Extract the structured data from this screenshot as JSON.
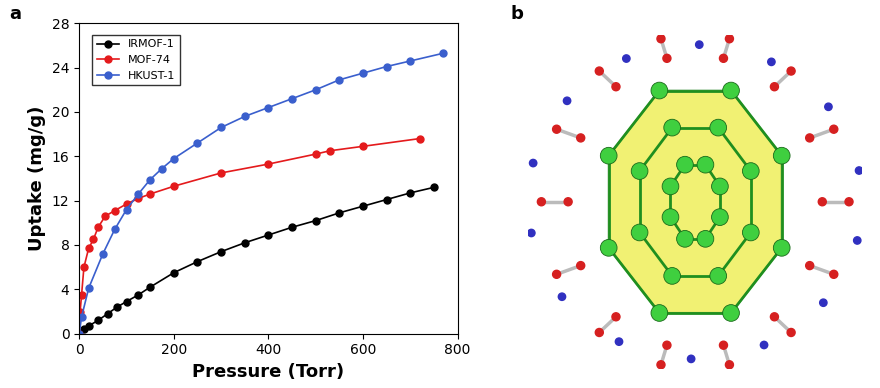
{
  "chart_data": {
    "type": "line",
    "x_label": "Pressure (Torr)",
    "y_label": "Uptake (mg/g)",
    "xlim": [
      0,
      800
    ],
    "xticks": [
      0,
      200,
      400,
      600,
      800
    ],
    "ylim": [
      0,
      28
    ],
    "yticks": [
      0,
      4,
      8,
      12,
      16,
      20,
      24,
      28
    ],
    "legend": "upper left",
    "marker": "o",
    "line_style": "solid",
    "series": [
      {
        "name": "IRMOF-1",
        "color": "#000000",
        "x": [
          0,
          10,
          20,
          40,
          60,
          80,
          100,
          125,
          150,
          200,
          250,
          300,
          350,
          400,
          450,
          500,
          550,
          600,
          650,
          700,
          750
        ],
        "values": [
          0,
          0.4,
          0.7,
          1.2,
          1.8,
          2.4,
          2.9,
          3.5,
          4.2,
          5.5,
          6.5,
          7.4,
          8.2,
          8.9,
          9.6,
          10.2,
          10.9,
          11.5,
          12.1,
          12.7,
          13.2
        ]
      },
      {
        "name": "MOF-74",
        "color": "#e41a1c",
        "x": [
          0,
          2,
          5,
          10,
          20,
          30,
          40,
          55,
          75,
          100,
          125,
          150,
          200,
          300,
          400,
          500,
          530,
          600,
          720
        ],
        "values": [
          0,
          2.0,
          3.5,
          6.0,
          7.7,
          8.5,
          9.6,
          10.6,
          11.1,
          11.7,
          12.2,
          12.6,
          13.3,
          14.5,
          15.3,
          16.2,
          16.5,
          16.9,
          17.6
        ]
      },
      {
        "name": "HKUST-1",
        "color": "#3a5fcd",
        "x": [
          0,
          5,
          20,
          50,
          75,
          100,
          125,
          150,
          175,
          200,
          250,
          300,
          350,
          400,
          450,
          500,
          550,
          600,
          650,
          700,
          770
        ],
        "values": [
          0,
          1.5,
          4.1,
          7.2,
          9.4,
          11.2,
          12.6,
          13.9,
          14.9,
          15.8,
          17.2,
          18.6,
          19.6,
          20.4,
          21.2,
          22.0,
          22.9,
          23.5,
          24.1,
          24.6,
          25.3
        ]
      }
    ]
  },
  "panel_labels": [
    "a",
    "b"
  ]
}
